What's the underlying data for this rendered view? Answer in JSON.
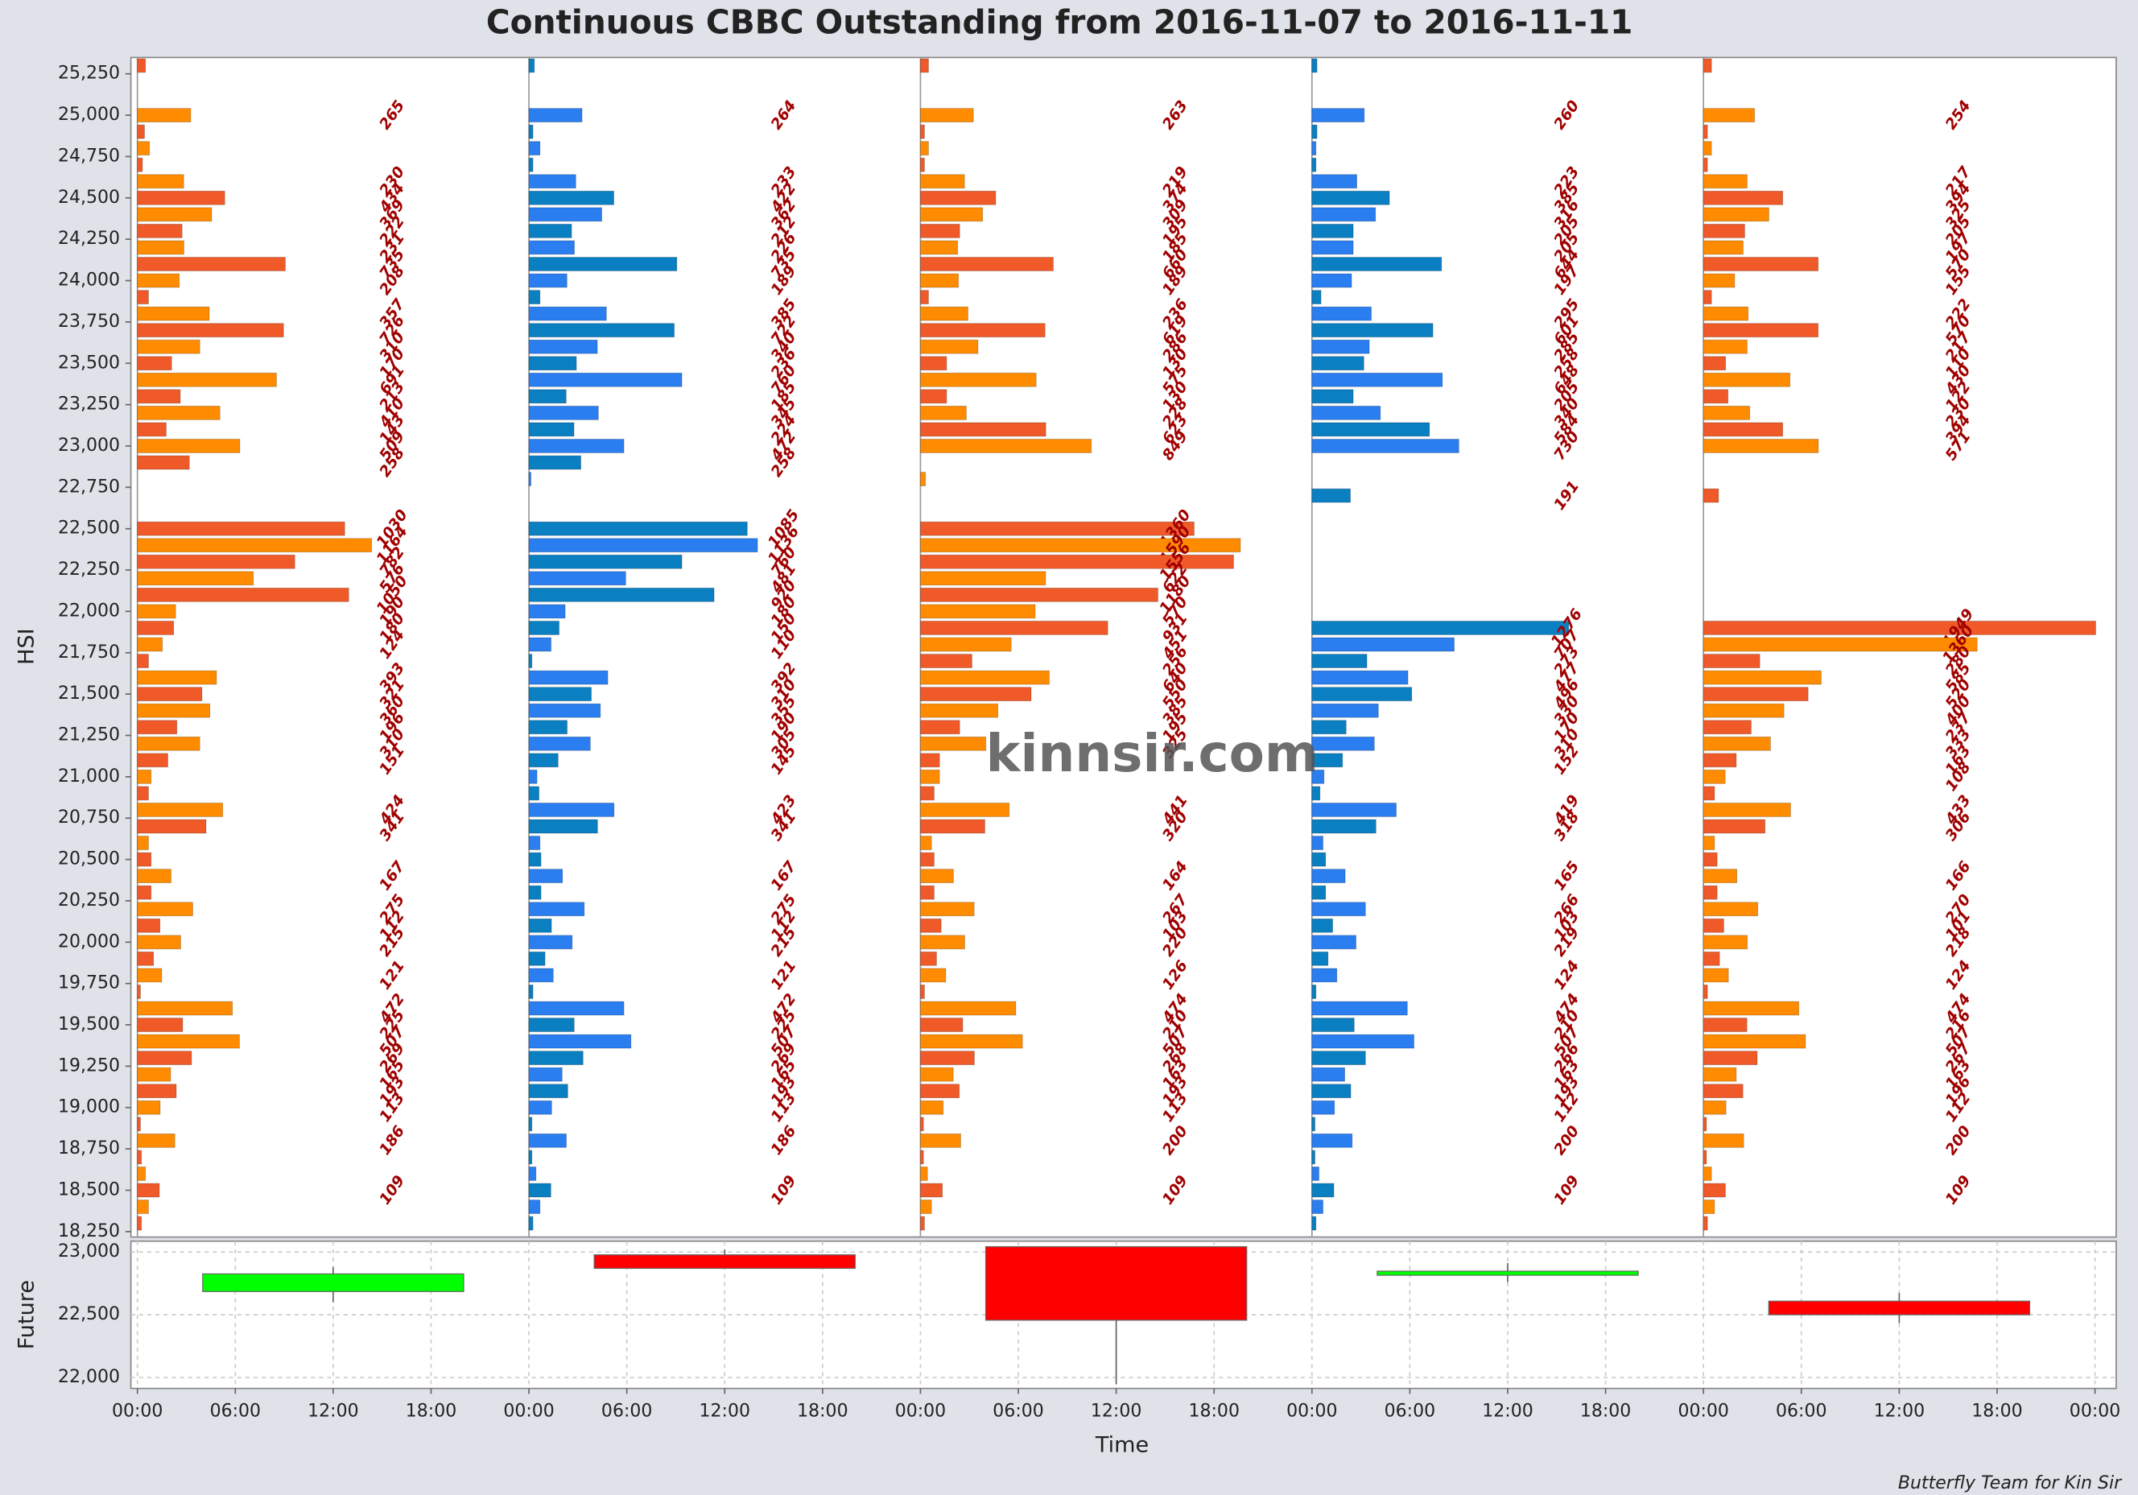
{
  "chart_data": [
    {
      "type": "cbbc",
      "title": "Continuous CBBC Outstanding from 2016-11-07 to 2016-11-11",
      "ylabel": "HSI",
      "watermark": "kinnsir.com",
      "ylim": [
        18217,
        25349
      ],
      "xlim": [
        -0.4,
        121.3
      ],
      "label_threshold": 100,
      "yticks": [
        {
          "value": 18250,
          "label": "18,250"
        },
        {
          "value": 18500,
          "label": "18,500"
        },
        {
          "value": 18750,
          "label": "18,750"
        },
        {
          "value": 19000,
          "label": "19,000"
        },
        {
          "value": 19250,
          "label": "19,250"
        },
        {
          "value": 19500,
          "label": "19,500"
        },
        {
          "value": 19750,
          "label": "19,750"
        },
        {
          "value": 20000,
          "label": "20,000"
        },
        {
          "value": 20250,
          "label": "20,250"
        },
        {
          "value": 20500,
          "label": "20,500"
        },
        {
          "value": 20750,
          "label": "20,750"
        },
        {
          "value": 21000,
          "label": "21,000"
        },
        {
          "value": 21250,
          "label": "21,250"
        },
        {
          "value": 21500,
          "label": "21,500"
        },
        {
          "value": 21750,
          "label": "21,750"
        },
        {
          "value": 22000,
          "label": "22,000"
        },
        {
          "value": 22250,
          "label": "22,250"
        },
        {
          "value": 22500,
          "label": "22,500"
        },
        {
          "value": 22750,
          "label": "22,750"
        },
        {
          "value": 23000,
          "label": "23,000"
        },
        {
          "value": 23250,
          "label": "23,250"
        },
        {
          "value": 23500,
          "label": "23,500"
        },
        {
          "value": 23750,
          "label": "23,750"
        },
        {
          "value": 24000,
          "label": "24,000"
        },
        {
          "value": 24250,
          "label": "24,250"
        },
        {
          "value": 24500,
          "label": "24,500"
        },
        {
          "value": 24750,
          "label": "24,750"
        },
        {
          "value": 25000,
          "label": "25,000"
        },
        {
          "value": 25250,
          "label": "25,250"
        }
      ],
      "levels": [
        25300,
        25200,
        25100,
        25000,
        24900,
        24800,
        24700,
        24600,
        24500,
        24400,
        24300,
        24200,
        24100,
        24000,
        23900,
        23800,
        23700,
        23600,
        23500,
        23400,
        23300,
        23200,
        23100,
        23000,
        22900,
        22800,
        22700,
        22600,
        22500,
        22400,
        22300,
        22200,
        22100,
        22000,
        21900,
        21800,
        21700,
        21600,
        21500,
        21400,
        21300,
        21200,
        21100,
        21000,
        20900,
        20800,
        20700,
        20600,
        20500,
        20400,
        20300,
        20200,
        20100,
        20000,
        19900,
        19800,
        19700,
        19600,
        19500,
        19400,
        19300,
        19200,
        19100,
        19000,
        18900,
        18800,
        18700,
        18600,
        18500,
        18400,
        18300
      ],
      "panels": [
        {
          "x": 0,
          "colors": [
            "#f05a28",
            "#ff8c00"
          ],
          "values": [
            40,
            0,
            0,
            265,
            35,
            60,
            25,
            230,
            434,
            369,
            222,
            231,
            735,
            208,
            55,
            357,
            726,
            310,
            170,
            691,
            213,
            410,
            143,
            509,
            258,
            0,
            0,
            0,
            1030,
            1164,
            782,
            576,
            1050,
            190,
            180,
            124,
            55,
            393,
            321,
            360,
            196,
            310,
            151,
            68,
            55,
            424,
            341,
            55,
            68,
            167,
            68,
            275,
            112,
            215,
            80,
            121,
            15,
            472,
            225,
            507,
            269,
            165,
            193,
            113,
            15,
            186,
            20,
            40,
            109,
            55,
            20
          ]
        },
        {
          "x": 24,
          "colors": [
            "#0a7fc2",
            "#2a7ef0"
          ],
          "values": [
            27,
            0,
            0,
            264,
            20,
            55,
            20,
            233,
            422,
            362,
            212,
            226,
            735,
            189,
            55,
            385,
            722,
            340,
            236,
            760,
            185,
            345,
            224,
            472,
            258,
            10,
            0,
            0,
            1085,
            1136,
            760,
            481,
            920,
            180,
            150,
            110,
            15,
            392,
            310,
            355,
            190,
            305,
            145,
            40,
            50,
            423,
            341,
            55,
            60,
            167,
            60,
            275,
            112,
            215,
            80,
            121,
            20,
            472,
            225,
            507,
            269,
            165,
            193,
            113,
            15,
            186,
            15,
            35,
            109,
            55,
            20
          ]
        },
        {
          "x": 48,
          "colors": [
            "#f05a28",
            "#ff8c00"
          ],
          "values": [
            40,
            0,
            0,
            263,
            20,
            40,
            20,
            219,
            374,
            309,
            195,
            185,
            660,
            189,
            40,
            236,
            619,
            286,
            130,
            575,
            130,
            228,
            623,
            849,
            0,
            25,
            0,
            0,
            1360,
            1590,
            1556,
            622,
            1180,
            570,
            931,
            451,
            256,
            640,
            550,
            385,
            195,
            325,
            95,
            95,
            68,
            441,
            320,
            55,
            68,
            164,
            68,
            267,
            103,
            220,
            80,
            126,
            20,
            474,
            210,
            507,
            268,
            163,
            193,
            113,
            15,
            200,
            15,
            35,
            109,
            55,
            20
          ]
        },
        {
          "x": 72,
          "colors": [
            "#0a7fc2",
            "#2a7ef0"
          ],
          "values": [
            25,
            0,
            0,
            260,
            25,
            20,
            20,
            223,
            385,
            316,
            205,
            205,
            644,
            197,
            45,
            295,
            601,
            285,
            258,
            648,
            205,
            340,
            584,
            730,
            0,
            0,
            191,
            0,
            0,
            0,
            0,
            0,
            0,
            0,
            1276,
            707,
            273,
            477,
            496,
            330,
            170,
            310,
            152,
            60,
            40,
            419,
            318,
            55,
            68,
            165,
            68,
            266,
            103,
            219,
            80,
            124,
            20,
            474,
            210,
            507,
            266,
            163,
            193,
            112,
            15,
            200,
            15,
            35,
            109,
            55,
            20
          ]
        },
        {
          "x": 96,
          "colors": [
            "#f05a28",
            "#ff8c00"
          ],
          "values": [
            40,
            0,
            0,
            254,
            20,
            40,
            20,
            217,
            394,
            325,
            205,
            197,
            570,
            155,
            40,
            222,
            570,
            217,
            110,
            430,
            122,
            230,
            394,
            571,
            0,
            0,
            75,
            0,
            0,
            0,
            0,
            0,
            0,
            0,
            1949,
            1360,
            280,
            585,
            520,
            400,
            237,
            333,
            163,
            108,
            55,
            433,
            306,
            55,
            68,
            166,
            68,
            270,
            101,
            218,
            80,
            124,
            20,
            474,
            216,
            507,
            267,
            163,
            196,
            112,
            15,
            200,
            15,
            40,
            109,
            55,
            20
          ]
        }
      ]
    },
    {
      "type": "candlestick",
      "ylabel": "Future",
      "xlabel": "Time",
      "grid": true,
      "xlim": [
        -0.4,
        121.3
      ],
      "ylim": [
        21913,
        23087
      ],
      "yticks": [
        {
          "value": 22000,
          "label": "22,000"
        },
        {
          "value": 22500,
          "label": "22,500"
        },
        {
          "value": 23000,
          "label": "23,000"
        }
      ],
      "xticks": [
        {
          "value": 0,
          "label": "00:00"
        },
        {
          "value": 6,
          "label": "06:00"
        },
        {
          "value": 12,
          "label": "12:00"
        },
        {
          "value": 18,
          "label": "18:00"
        },
        {
          "value": 24,
          "label": "00:00"
        },
        {
          "value": 30,
          "label": "06:00"
        },
        {
          "value": 36,
          "label": "12:00"
        },
        {
          "value": 42,
          "label": "18:00"
        },
        {
          "value": 48,
          "label": "00:00"
        },
        {
          "value": 54,
          "label": "06:00"
        },
        {
          "value": 60,
          "label": "12:00"
        },
        {
          "value": 66,
          "label": "18:00"
        },
        {
          "value": 72,
          "label": "00:00"
        },
        {
          "value": 78,
          "label": "06:00"
        },
        {
          "value": 84,
          "label": "12:00"
        },
        {
          "value": 90,
          "label": "18:00"
        },
        {
          "value": 96,
          "label": "00:00"
        },
        {
          "value": 102,
          "label": "06:00"
        },
        {
          "value": 108,
          "label": "12:00"
        },
        {
          "value": 114,
          "label": "18:00"
        },
        {
          "value": 120,
          "label": "00:00"
        }
      ],
      "x": [
        12,
        36,
        60,
        84,
        108
      ],
      "open": [
        22685,
        22978,
        23043,
        22815,
        22609
      ],
      "high": [
        22880,
        23020,
        23043,
        22913,
        22674
      ],
      "low": [
        22600,
        22870,
        21946,
        22761,
        22435
      ],
      "close": [
        22826,
        22870,
        22457,
        22848,
        22500
      ],
      "up_color": "#00ff00",
      "down_color": "#ff0000"
    }
  ],
  "footer": "Butterfly Team for Kin Sir"
}
